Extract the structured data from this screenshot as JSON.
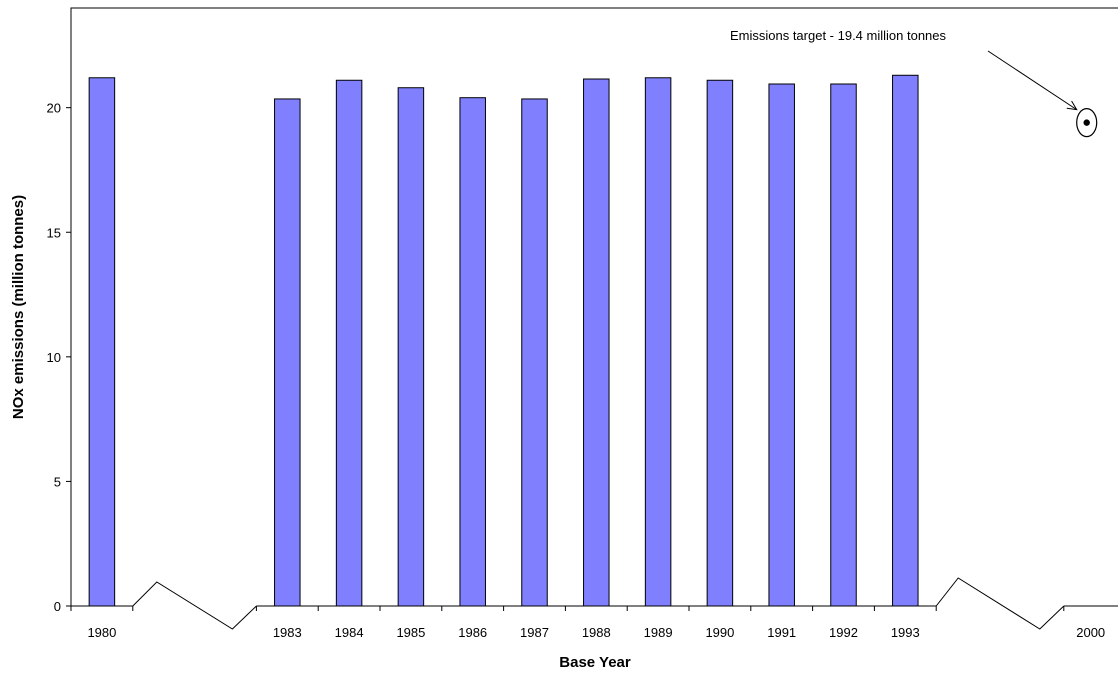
{
  "chart_data": {
    "type": "bar",
    "title": "",
    "xlabel": "Base Year",
    "ylabel": "NOx emissions (million tonnes)",
    "ylim": [
      0,
      24
    ],
    "yticks": [
      0,
      5,
      10,
      15,
      20
    ],
    "grid": false,
    "categories": [
      "1980",
      "1983",
      "1984",
      "1985",
      "1986",
      "1987",
      "1988",
      "1989",
      "1990",
      "1991",
      "1992",
      "1993"
    ],
    "values": [
      21.2,
      20.35,
      21.1,
      20.8,
      20.4,
      20.35,
      21.15,
      21.2,
      21.1,
      20.95,
      20.95,
      21.3
    ],
    "axis_breaks": [
      "1980-1983",
      "1993-2000"
    ],
    "target": {
      "year": "2000",
      "value": 19.4,
      "label": "Emissions target - 19.4 million tonnes"
    }
  }
}
